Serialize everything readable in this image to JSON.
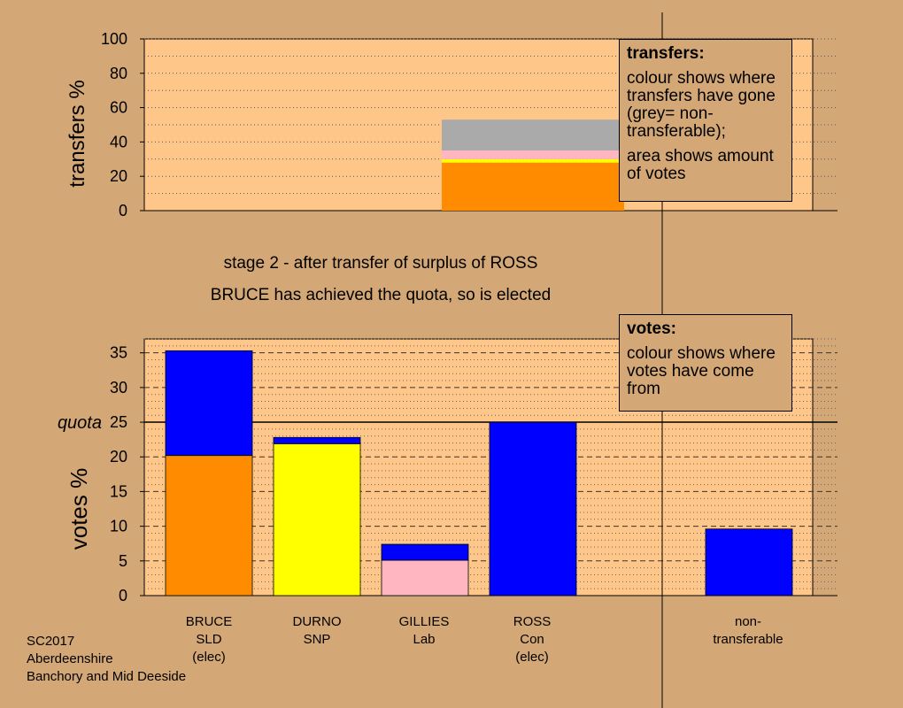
{
  "captions": {
    "stage": "stage 2 - after transfer of surplus of ROSS",
    "status": "BRUCE has achieved the quota, so is elected"
  },
  "legend_transfers": {
    "title": "transfers:",
    "line1": "colour shows where transfers have gone (grey= non-transferable);",
    "line2": "area shows amount of votes"
  },
  "legend_votes": {
    "title": "votes:",
    "line1": "colour shows where votes have come from"
  },
  "footer": {
    "line1": "SC2017",
    "line2": "Aberdeenshire",
    "line3": "Banchory and Mid Deeside"
  },
  "candidates": [
    {
      "name": "BRUCE",
      "party": "SLD",
      "note": "(elec)"
    },
    {
      "name": "DURNO",
      "party": "SNP",
      "note": ""
    },
    {
      "name": "GILLIES",
      "party": "Lab",
      "note": ""
    },
    {
      "name": "ROSS",
      "party": "Con",
      "note": "(elec)"
    },
    {
      "name": "non-",
      "party": "transferable",
      "note": ""
    }
  ],
  "colors": {
    "SLD": "#ff8c00",
    "SNP": "#ffff00",
    "Lab": "#ffb6c1",
    "Con": "#0000ff",
    "nontransferable": "#aaaaaa",
    "plot_bg": "#ffc68a",
    "page_bg": "#d4a876"
  },
  "chart_data": [
    {
      "type": "bar",
      "ylabel": "transfers %",
      "ylim": [
        0,
        100
      ],
      "yticks": [
        0,
        20,
        40,
        60,
        80,
        100
      ],
      "stacked_segments": [
        {
          "party": "SLD",
          "value": 28
        },
        {
          "party": "SNP",
          "value": 2
        },
        {
          "party": "Lab",
          "value": 5
        },
        {
          "party": "nontransferable",
          "value": 18
        }
      ]
    },
    {
      "type": "bar",
      "ylabel": "votes %",
      "ylim": [
        0,
        37
      ],
      "yticks": [
        0,
        5,
        10,
        15,
        20,
        25,
        30,
        35
      ],
      "quota": 25,
      "quota_label": "quota",
      "categories": [
        "BRUCE SLD (elec)",
        "DURNO SNP",
        "GILLIES Lab",
        "ROSS Con (elec)",
        "non-transferable"
      ],
      "series": [
        {
          "name": "SLD",
          "values": [
            20.2,
            0,
            0,
            0,
            0
          ]
        },
        {
          "name": "SNP",
          "values": [
            0,
            21.9,
            0,
            0,
            0
          ]
        },
        {
          "name": "Lab",
          "values": [
            0,
            0,
            5.1,
            0,
            0
          ]
        },
        {
          "name": "Con",
          "values": [
            15.1,
            0.9,
            2.3,
            25,
            9.6
          ]
        }
      ]
    }
  ]
}
